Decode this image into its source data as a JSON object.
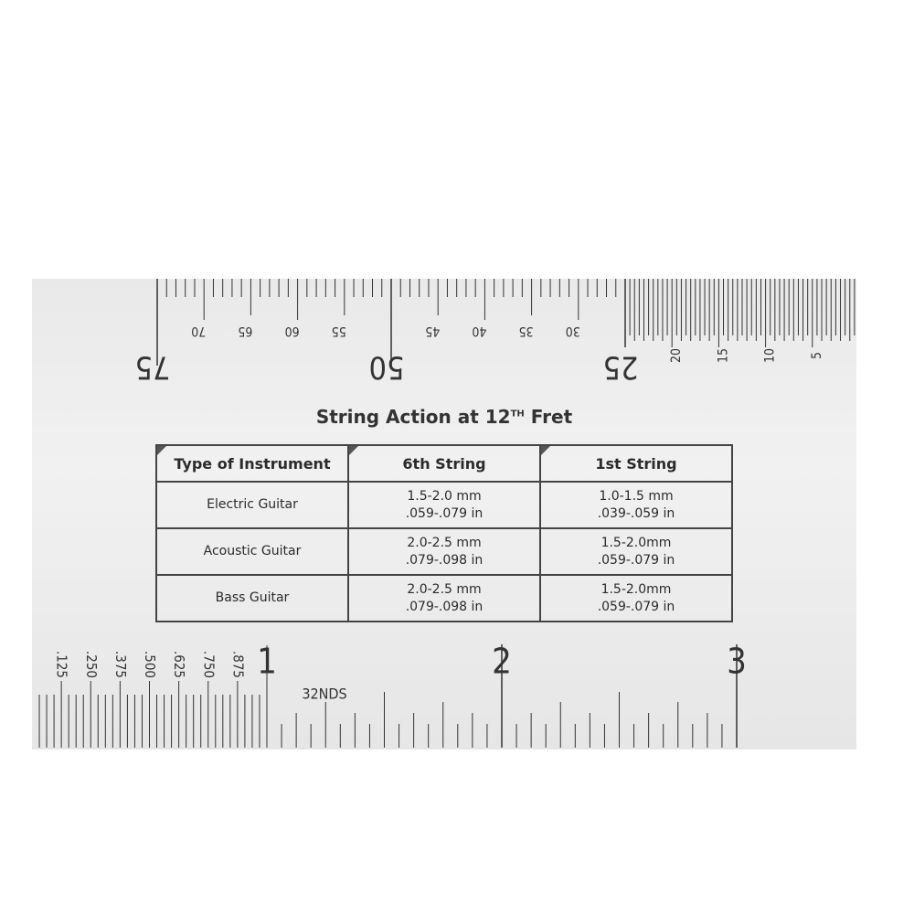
{
  "title": {
    "main": "String Action at 12",
    "sup": "TH",
    "end": "Fret"
  },
  "table": {
    "headers": [
      "Type of Instrument",
      "6th String",
      "1st String"
    ],
    "rows": [
      {
        "instrument": "Electric Guitar",
        "sixth_mm": "1.5-2.0 mm",
        "sixth_in": ".059-.079 in",
        "first_mm": "1.0-1.5 mm",
        "first_in": ".039-.059 in"
      },
      {
        "instrument": "Acoustic Guitar",
        "sixth_mm": "2.0-2.5 mm",
        "sixth_in": ".079-.098 in",
        "first_mm": "1.5-2.0mm",
        "first_in": ".059-.079 in"
      },
      {
        "instrument": "Bass Guitar",
        "sixth_mm": "2.0-2.5 mm",
        "sixth_in": ".079-.098 in",
        "first_mm": "1.5-2.0mm",
        "first_in": ".059-.079 in"
      }
    ]
  },
  "mm_ruler": {
    "major_labels": [
      "75",
      "50",
      "25"
    ],
    "minor_labels": [
      "70",
      "65",
      "60",
      "55",
      "45",
      "40",
      "35",
      "30"
    ],
    "fine_labels": [
      "20",
      "15",
      "10",
      "5"
    ]
  },
  "inch_ruler": {
    "inch_labels": [
      "1",
      "2",
      "3"
    ],
    "fraction_labels": [
      ".125",
      ".250",
      ".375",
      ".500",
      ".625",
      ".750",
      ".875"
    ],
    "scale_label": "32NDS"
  },
  "colors": {
    "plate": "#ececec",
    "ink": "#333333"
  }
}
